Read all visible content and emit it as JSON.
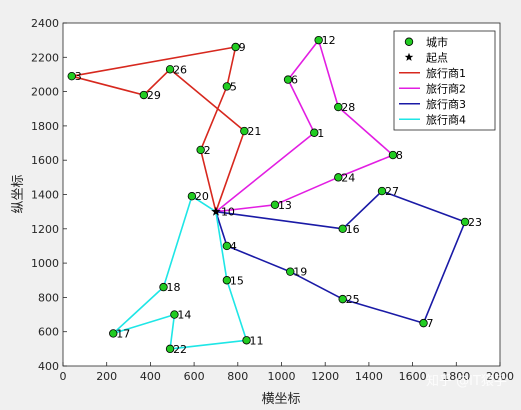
{
  "chart_data": {
    "type": "scatter",
    "xlabel": "横坐标",
    "ylabel": "纵坐标",
    "xlim": [
      0,
      2000
    ],
    "ylim": [
      400,
      2400
    ],
    "xticks": [
      0,
      200,
      400,
      600,
      800,
      1000,
      1200,
      1400,
      1600,
      1800,
      2000
    ],
    "yticks": [
      400,
      600,
      800,
      1000,
      1200,
      1400,
      1600,
      1800,
      2000,
      2200,
      2400
    ],
    "grid": false,
    "legend_position": "top-right",
    "depot": {
      "id": "10",
      "x": 700,
      "y": 1300
    },
    "cities": [
      {
        "id": "1",
        "x": 1150,
        "y": 1760
      },
      {
        "id": "2",
        "x": 630,
        "y": 1660
      },
      {
        "id": "3",
        "x": 40,
        "y": 2090
      },
      {
        "id": "4",
        "x": 750,
        "y": 1100
      },
      {
        "id": "5",
        "x": 750,
        "y": 2030
      },
      {
        "id": "6",
        "x": 1030,
        "y": 2070
      },
      {
        "id": "7",
        "x": 1650,
        "y": 650
      },
      {
        "id": "8",
        "x": 1510,
        "y": 1630
      },
      {
        "id": "9",
        "x": 790,
        "y": 2260
      },
      {
        "id": "11",
        "x": 840,
        "y": 550
      },
      {
        "id": "12",
        "x": 1170,
        "y": 2300
      },
      {
        "id": "13",
        "x": 970,
        "y": 1340
      },
      {
        "id": "14",
        "x": 510,
        "y": 700
      },
      {
        "id": "15",
        "x": 750,
        "y": 900
      },
      {
        "id": "16",
        "x": 1280,
        "y": 1200
      },
      {
        "id": "17",
        "x": 230,
        "y": 590
      },
      {
        "id": "18",
        "x": 460,
        "y": 860
      },
      {
        "id": "19",
        "x": 1040,
        "y": 950
      },
      {
        "id": "20",
        "x": 590,
        "y": 1390
      },
      {
        "id": "21",
        "x": 830,
        "y": 1770
      },
      {
        "id": "22",
        "x": 490,
        "y": 500
      },
      {
        "id": "23",
        "x": 1840,
        "y": 1240
      },
      {
        "id": "24",
        "x": 1260,
        "y": 1500
      },
      {
        "id": "25",
        "x": 1280,
        "y": 790
      },
      {
        "id": "26",
        "x": 490,
        "y": 2130
      },
      {
        "id": "27",
        "x": 1460,
        "y": 1420
      },
      {
        "id": "28",
        "x": 1260,
        "y": 1910
      },
      {
        "id": "29",
        "x": 370,
        "y": 1980
      }
    ],
    "routes": [
      {
        "name": "旅行商1",
        "color": "#d7281e",
        "path": [
          "10",
          "2",
          "5",
          "9",
          "3",
          "29",
          "26",
          "21",
          "10"
        ]
      },
      {
        "name": "旅行商2",
        "color": "#e21ee2",
        "path": [
          "10",
          "1",
          "6",
          "12",
          "28",
          "8",
          "24",
          "13",
          "10"
        ]
      },
      {
        "name": "旅行商3",
        "color": "#1a1aa6",
        "path": [
          "10",
          "16",
          "27",
          "23",
          "7",
          "25",
          "19",
          "4",
          "10"
        ]
      },
      {
        "name": "旅行商4",
        "color": "#1ee6e6",
        "path": [
          "10",
          "20",
          "18",
          "17",
          "14",
          "22",
          "11",
          "15",
          "10"
        ]
      }
    ],
    "legend": {
      "city_label": "城市",
      "depot_label": "起点",
      "city_marker_color": "#22cc22"
    }
  },
  "watermark": "知乎 @IT猿手"
}
